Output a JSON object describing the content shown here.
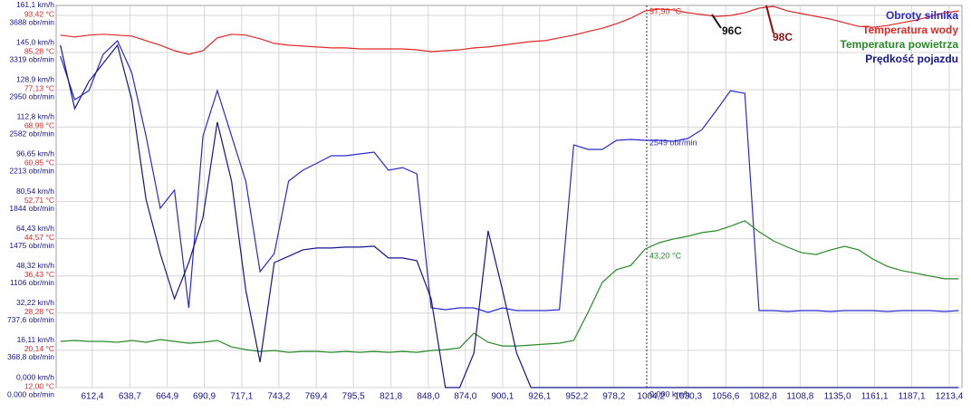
{
  "chart_data": {
    "type": "line",
    "x": [
      590,
      600,
      610,
      620,
      630,
      640,
      650,
      660,
      670,
      680,
      690,
      700,
      710,
      720,
      730,
      740,
      750,
      760,
      770,
      780,
      790,
      800,
      810,
      820,
      830,
      840,
      850,
      860,
      870,
      880,
      890,
      900,
      910,
      920,
      930,
      940,
      950,
      960,
      970,
      980,
      990,
      1000,
      1010,
      1020,
      1030,
      1040,
      1050,
      1060,
      1070,
      1080,
      1090,
      1100,
      1110,
      1120,
      1130,
      1140,
      1150,
      1160,
      1170,
      1180,
      1190,
      1200,
      1210,
      1220
    ],
    "xlim": [
      587,
      1222.3
    ],
    "xticks": [
      {
        "value": 612.4,
        "label": "612,4"
      },
      {
        "value": 638.7,
        "label": "638,7"
      },
      {
        "value": 664.9,
        "label": "664,9"
      },
      {
        "value": 690.9,
        "label": "690,9"
      },
      {
        "value": 717.1,
        "label": "717,1"
      },
      {
        "value": 743.2,
        "label": "743,2"
      },
      {
        "value": 769.4,
        "label": "769,4"
      },
      {
        "value": 795.5,
        "label": "795,5"
      },
      {
        "value": 821.8,
        "label": "821,8"
      },
      {
        "value": 848.0,
        "label": "848,0"
      },
      {
        "value": 874.0,
        "label": "874,0"
      },
      {
        "value": 900.1,
        "label": "900,1"
      },
      {
        "value": 926.1,
        "label": "926,1"
      },
      {
        "value": 952.2,
        "label": "952,2"
      },
      {
        "value": 978.2,
        "label": "978,2"
      },
      {
        "value": 1004.2,
        "label": "1004,2"
      },
      {
        "value": 1030.3,
        "label": "1030,3"
      },
      {
        "value": 1056.6,
        "label": "1056,6"
      },
      {
        "value": 1082.8,
        "label": "1082,8"
      },
      {
        "value": 1108.8,
        "label": "1108,8"
      },
      {
        "value": 1135.0,
        "label": "1135,0"
      },
      {
        "value": 1161.1,
        "label": "1161,1"
      },
      {
        "value": 1187.1,
        "label": "1187,1"
      },
      {
        "value": 1213.4,
        "label": "1213,4"
      }
    ],
    "ylim": [
      0,
      165.4
    ],
    "yticks": [
      {
        "value": 0,
        "label": "0,000 km/h"
      },
      {
        "value": 16.11,
        "label": "16,11 km/h"
      },
      {
        "value": 32.22,
        "label": "32,22 km/h"
      },
      {
        "value": 48.32,
        "label": "48,32 km/h"
      },
      {
        "value": 64.43,
        "label": "64,43 km/h"
      },
      {
        "value": 80.54,
        "label": "80,54 km/h"
      },
      {
        "value": 96.65,
        "label": "96,65 km/h"
      },
      {
        "value": 112.8,
        "label": "112,8 km/h"
      },
      {
        "value": 128.9,
        "label": "128,9 km/h"
      },
      {
        "value": 145.0,
        "label": "145,0 km/h"
      },
      {
        "value": 161.1,
        "label": "161,1 km/h"
      }
    ],
    "y2lim": [
      12,
      95.6
    ],
    "y2ticks": [
      {
        "value": 12.0,
        "label": "12,00 °C"
      },
      {
        "value": 20.14,
        "label": "20,14 °C"
      },
      {
        "value": 28.28,
        "label": "28,28 °C"
      },
      {
        "value": 36.43,
        "label": "36,43 °C"
      },
      {
        "value": 44.57,
        "label": "44,57 °C"
      },
      {
        "value": 52.71,
        "label": "52,71 °C"
      },
      {
        "value": 60.85,
        "label": "60,85 °C"
      },
      {
        "value": 68.99,
        "label": "68,99 °C"
      },
      {
        "value": 77.13,
        "label": "77,13 °C"
      },
      {
        "value": 85.28,
        "label": "85,28 °C"
      },
      {
        "value": 93.42,
        "label": "93,42 °C"
      }
    ],
    "y3lim": [
      0,
      3787
    ],
    "y3ticks": [
      {
        "value": 0,
        "label": "0,000 obr/min"
      },
      {
        "value": 368.8,
        "label": "368,8 obr/min"
      },
      {
        "value": 737.6,
        "label": "737,6 obr/min"
      },
      {
        "value": 1106,
        "label": "1106 obr/min"
      },
      {
        "value": 1475,
        "label": "1475 obr/min"
      },
      {
        "value": 1844,
        "label": "1844 obr/min"
      },
      {
        "value": 2213,
        "label": "2213 obr/min"
      },
      {
        "value": 2582,
        "label": "2582 obr/min"
      },
      {
        "value": 2950,
        "label": "2950 obr/min"
      },
      {
        "value": 3319,
        "label": "3319 obr/min"
      },
      {
        "value": 3688,
        "label": "3688 obr/min"
      }
    ],
    "grid": true,
    "legend": "top-right",
    "series": [
      {
        "name": "Obroty silnika",
        "color": "#2a2ad2",
        "axis": "y3",
        "values": [
          3284,
          2853,
          2943,
          3302,
          3437,
          3122,
          2494,
          1777,
          1956,
          790,
          2494,
          2943,
          2494,
          2046,
          1149,
          1328,
          2046,
          2154,
          2225,
          2297,
          2297,
          2315,
          2333,
          2154,
          2180,
          2118,
          790,
          772,
          790,
          790,
          745,
          790,
          763,
          763,
          763,
          772,
          2405,
          2360,
          2360,
          2450,
          2459,
          2450,
          2450,
          2441,
          2468,
          2557,
          2746,
          2943,
          2916,
          763,
          763,
          754,
          763,
          763,
          754,
          763,
          763,
          763,
          754,
          763,
          763,
          763,
          754,
          763
        ]
      },
      {
        "name": "Temperatura wody",
        "color": "#e02828",
        "axis": "y2",
        "values": [
          89.1,
          88.7,
          89.1,
          89.3,
          89.1,
          88.9,
          87.9,
          86.9,
          85.7,
          84.9,
          85.7,
          88.5,
          89.3,
          89.1,
          88.3,
          87.3,
          86.9,
          86.7,
          86.5,
          86.3,
          86.3,
          86.1,
          86.1,
          86.1,
          86.1,
          85.9,
          85.5,
          85.7,
          85.9,
          86.3,
          86.5,
          86.9,
          87.3,
          87.7,
          87.9,
          88.5,
          89.1,
          89.9,
          90.6,
          91.6,
          92.8,
          94.4,
          94.8,
          94.6,
          94.0,
          93.6,
          93.2,
          93.4,
          94.0,
          95.0,
          95.4,
          94.4,
          93.8,
          93.2,
          92.6,
          91.8,
          91.0,
          90.8,
          91.2,
          91.8,
          92.4,
          93.2,
          94.0,
          94.4
        ]
      },
      {
        "name": "Temperatura powietrza",
        "color": "#2a8a2a",
        "axis": "y2",
        "values": [
          22.1,
          22.3,
          22.1,
          22.1,
          21.9,
          22.3,
          21.9,
          22.5,
          22.1,
          21.7,
          21.9,
          22.3,
          20.9,
          20.3,
          19.9,
          20.1,
          19.7,
          19.9,
          19.9,
          19.7,
          19.9,
          19.7,
          19.9,
          19.7,
          19.9,
          19.7,
          20.1,
          20.3,
          20.7,
          23.9,
          21.9,
          21.1,
          21.1,
          21.3,
          21.5,
          21.7,
          22.3,
          28.4,
          35.0,
          37.8,
          38.7,
          42.3,
          43.7,
          44.5,
          45.1,
          45.9,
          46.3,
          47.3,
          48.5,
          46.1,
          44.1,
          42.7,
          41.5,
          41.1,
          42.1,
          42.9,
          42.1,
          40.1,
          38.5,
          37.6,
          37.0,
          36.4,
          35.8,
          35.8
        ]
      },
      {
        "name": "Prędkość pojazdu",
        "color": "#15158e",
        "axis": "y",
        "values": [
          148.2,
          120.7,
          132.5,
          140.3,
          148.2,
          124.7,
          81.5,
          58.0,
          38.4,
          54.1,
          73.7,
          114.9,
          89.4,
          42.3,
          11.0,
          54.1,
          56.8,
          59.6,
          60.4,
          60.4,
          60.8,
          60.8,
          61.2,
          56.1,
          56.1,
          54.9,
          38.4,
          0,
          0,
          14.9,
          67.8,
          42.3,
          14.9,
          0,
          0,
          0,
          0,
          0,
          0,
          0,
          0,
          0,
          0,
          0,
          0,
          0,
          0,
          0,
          0,
          0,
          0,
          0,
          0,
          0,
          0,
          0,
          0,
          0,
          0,
          0,
          0,
          0,
          0,
          0
        ]
      }
    ],
    "annotations": [
      "97,90 °C",
      "2549 obr/min",
      "43,20 °C",
      "0,000 km/h",
      "96C",
      "98C"
    ]
  }
}
